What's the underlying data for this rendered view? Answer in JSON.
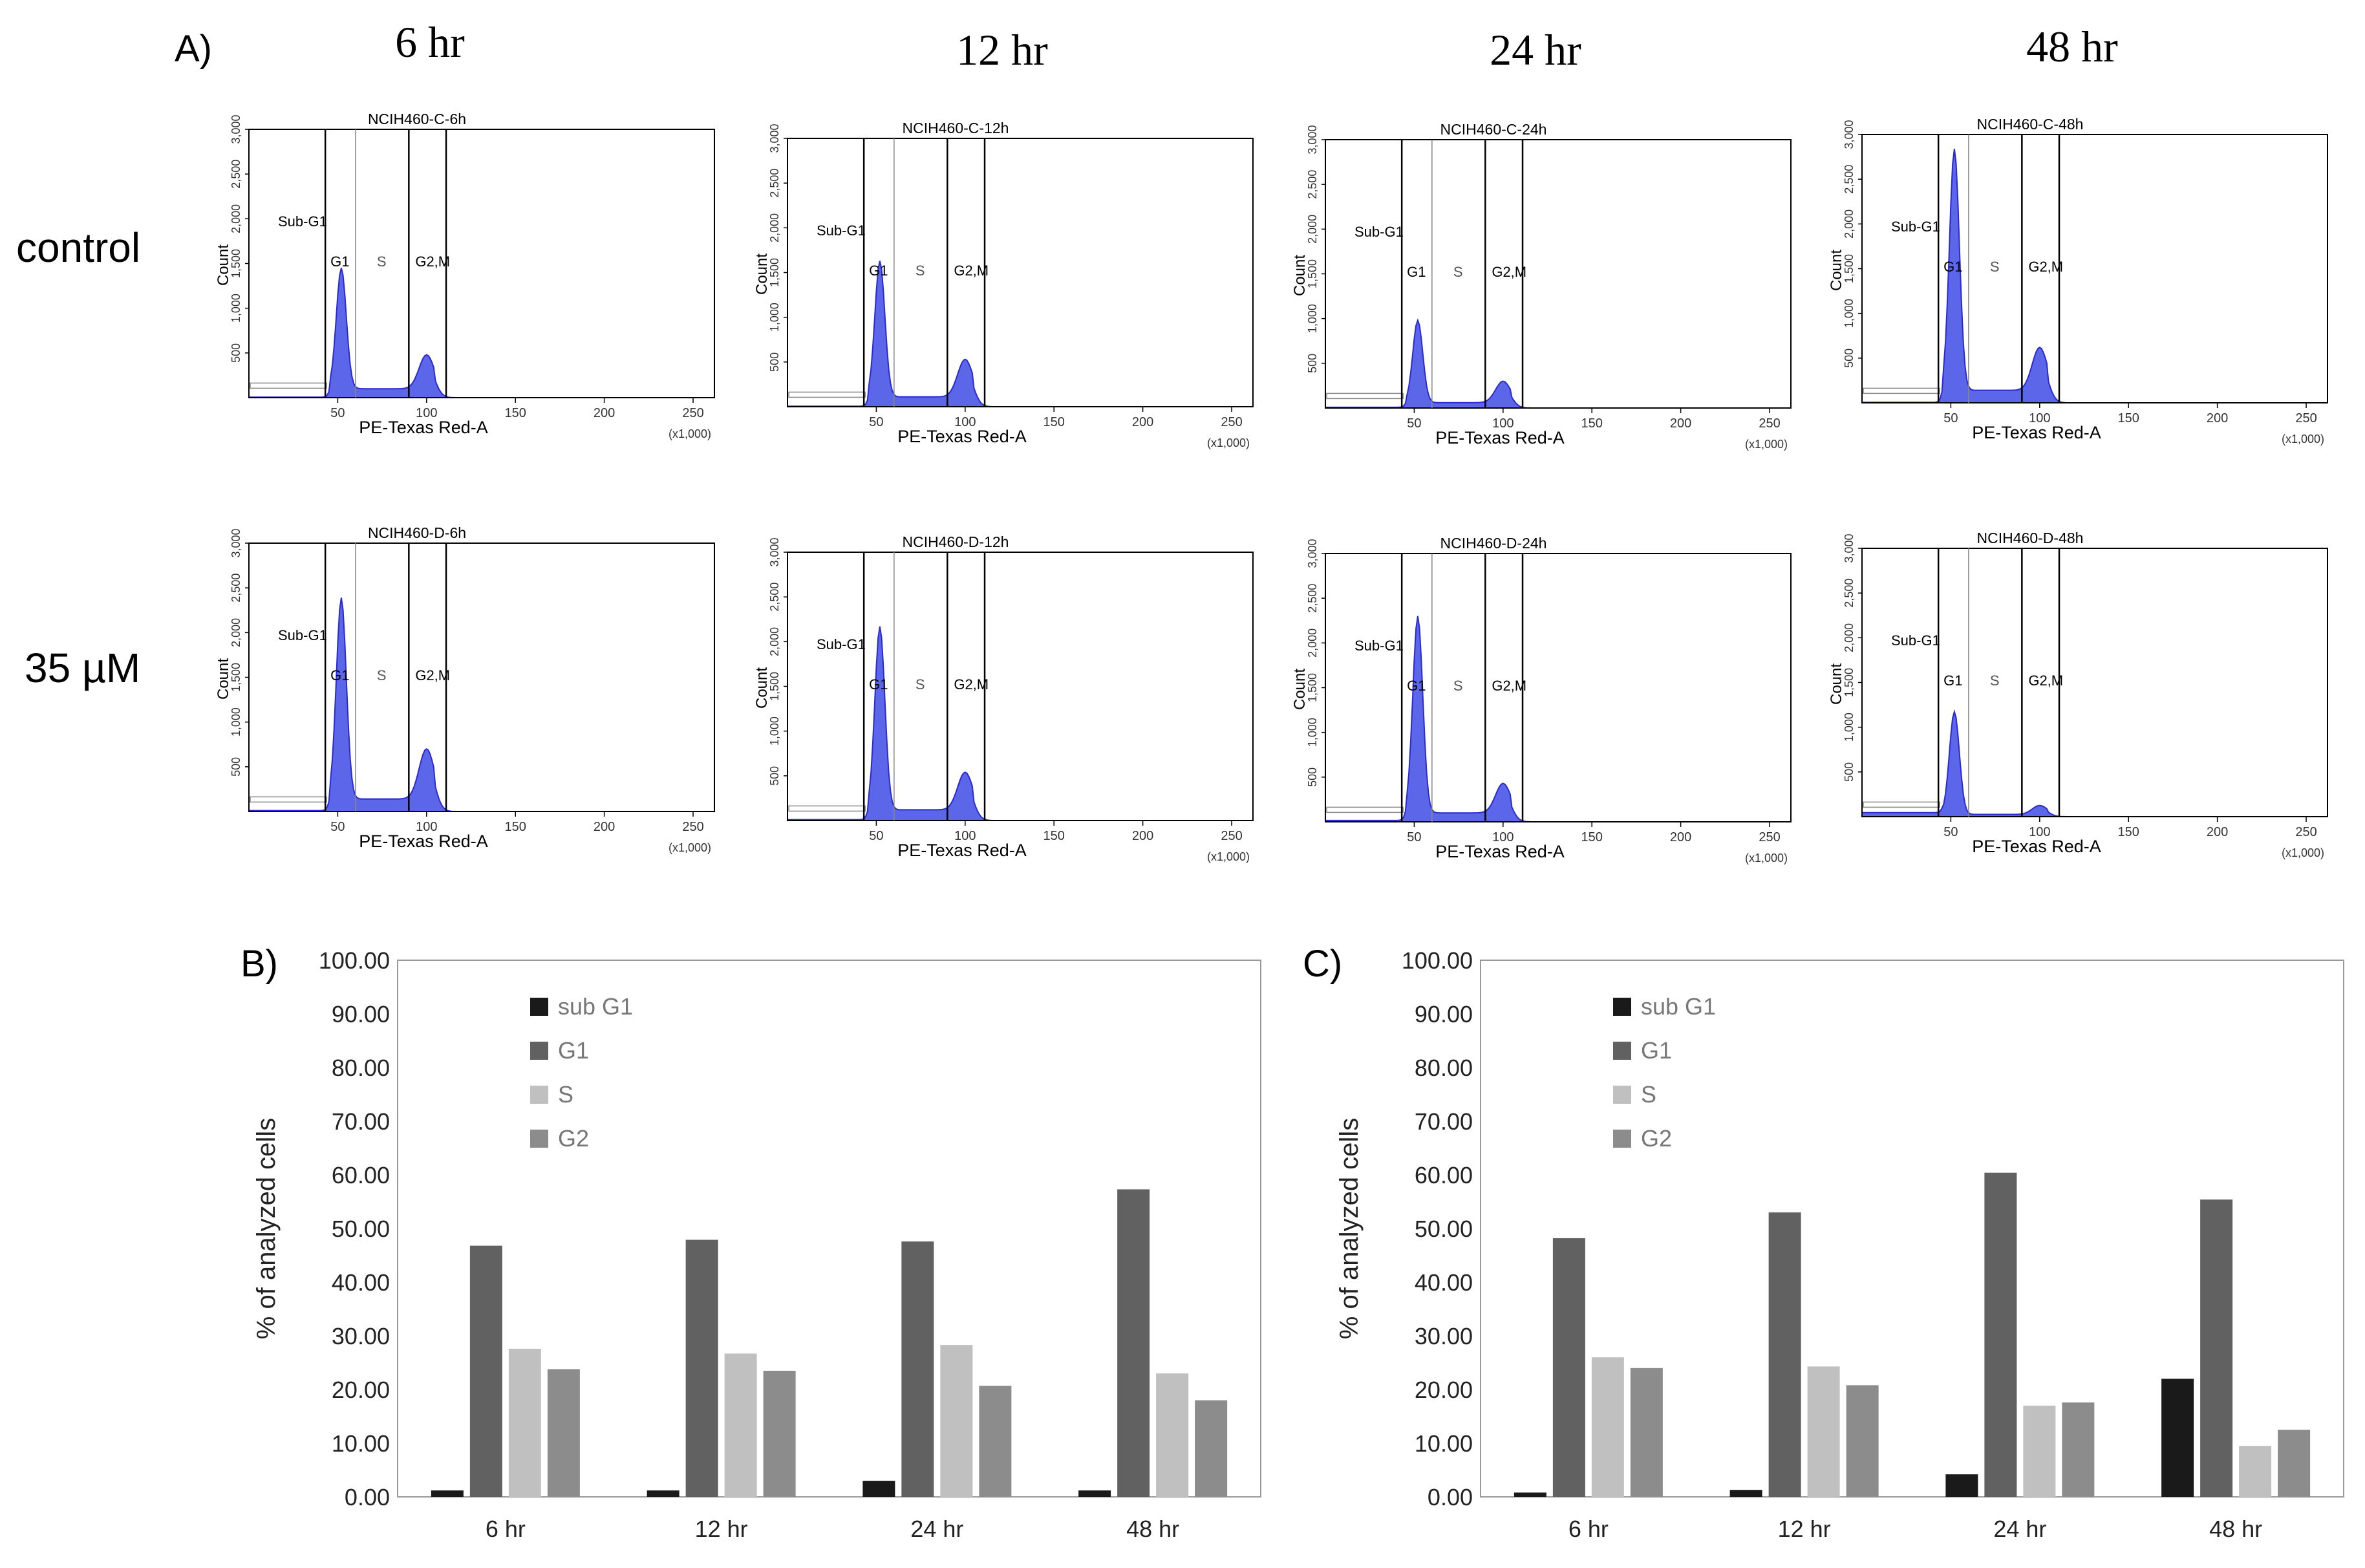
{
  "panels": {
    "a": "A)",
    "b": "B)",
    "c": "C)"
  },
  "time_labels": [
    "6 hr",
    "12 hr",
    "24 hr",
    "48 hr"
  ],
  "row_labels": [
    "control",
    "35 µM"
  ],
  "flow": {
    "xlabel": "PE-Texas Red-A",
    "ylabel": "Count",
    "x_scale": "(x1,000)",
    "x_ticks": [
      "50",
      "100",
      "150",
      "200",
      "250"
    ],
    "y_ticks": [
      "500",
      "1,000",
      "1,500",
      "2,000",
      "2,500",
      "3,000"
    ],
    "gates": [
      "Sub-G1",
      "G1",
      "S",
      "G2,M"
    ],
    "fill_color": "#5b66e8",
    "line_color": "#2a2ad0",
    "titles": [
      [
        "NCIH460-C-6h",
        "NCIH460-C-12h",
        "NCIH460-C-24h",
        "NCIH460-C-48h"
      ],
      [
        "NCIH460-D-6h",
        "NCIH460-D-12h",
        "NCIH460-D-24h",
        "NCIH460-D-48h"
      ]
    ],
    "peaks": [
      [
        {
          "g1": 1350,
          "g2": 380,
          "s": 100,
          "sub": 5
        },
        {
          "g1": 1520,
          "g2": 420,
          "s": 110,
          "sub": 5
        },
        {
          "g1": 920,
          "g2": 240,
          "s": 60,
          "sub": 8
        },
        {
          "g1": 2700,
          "g2": 480,
          "s": 140,
          "sub": 5
        }
      ],
      [
        {
          "g1": 2250,
          "g2": 560,
          "s": 140,
          "sub": 10
        },
        {
          "g1": 2050,
          "g2": 420,
          "s": 120,
          "sub": 10
        },
        {
          "g1": 2200,
          "g2": 330,
          "s": 100,
          "sub": 15
        },
        {
          "g1": 1150,
          "g2": 100,
          "s": 25,
          "sub": 45
        }
      ]
    ]
  },
  "chart_data": [
    {
      "type": "bar",
      "title": "",
      "xlabel": "",
      "ylabel": "% of analyzed cells",
      "ylim": [
        0,
        100
      ],
      "y_ticks": [
        "0.00",
        "10.00",
        "20.00",
        "30.00",
        "40.00",
        "50.00",
        "60.00",
        "70.00",
        "80.00",
        "90.00",
        "100.00"
      ],
      "categories": [
        "6 hr",
        "12 hr",
        "24 hr",
        "48 hr"
      ],
      "series": [
        {
          "name": "sub G1",
          "color": "#1a1a1a",
          "values": [
            1.2,
            1.2,
            3.0,
            1.2
          ]
        },
        {
          "name": "G1",
          "color": "#616161",
          "values": [
            46.8,
            47.9,
            47.6,
            57.3
          ]
        },
        {
          "name": "S",
          "color": "#c0c0c0",
          "values": [
            27.6,
            26.7,
            28.3,
            23.0
          ]
        },
        {
          "name": "G2",
          "color": "#8c8c8c",
          "values": [
            23.8,
            23.5,
            20.7,
            18.0
          ]
        }
      ]
    },
    {
      "type": "bar",
      "title": "",
      "xlabel": "",
      "ylabel": "% of analyzed cells",
      "ylim": [
        0,
        100
      ],
      "y_ticks": [
        "0.00",
        "10.00",
        "20.00",
        "30.00",
        "40.00",
        "50.00",
        "60.00",
        "70.00",
        "80.00",
        "90.00",
        "100.00"
      ],
      "categories": [
        "6 hr",
        "12 hr",
        "24 hr",
        "48 hr"
      ],
      "series": [
        {
          "name": "sub G1",
          "color": "#1a1a1a",
          "values": [
            0.8,
            1.3,
            4.2,
            22.0
          ]
        },
        {
          "name": "G1",
          "color": "#616161",
          "values": [
            48.2,
            53.0,
            60.4,
            55.4
          ]
        },
        {
          "name": "S",
          "color": "#c0c0c0",
          "values": [
            26.0,
            24.3,
            17.0,
            9.5
          ]
        },
        {
          "name": "G2",
          "color": "#8c8c8c",
          "values": [
            24.0,
            20.8,
            17.6,
            12.5
          ]
        }
      ]
    }
  ]
}
